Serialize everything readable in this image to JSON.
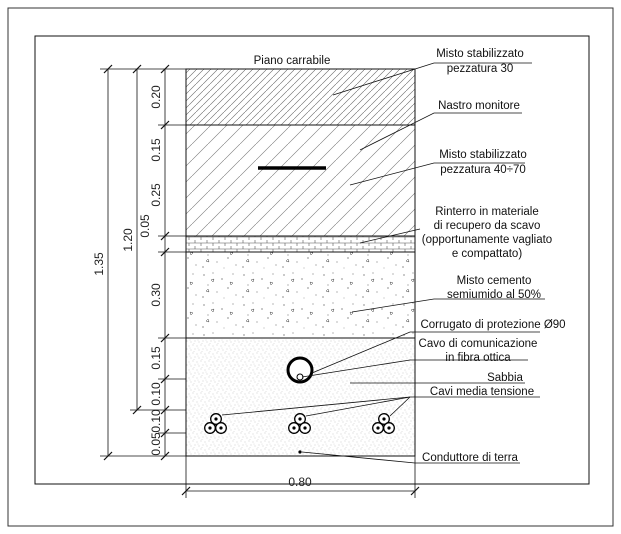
{
  "diagram": {
    "top_label": "Piano carrabile",
    "callouts": [
      {
        "id": "misto-30",
        "lines": [
          "Misto stabilizzato",
          "pezzatura 30"
        ]
      },
      {
        "id": "nastro",
        "lines": [
          "Nastro monitore"
        ]
      },
      {
        "id": "misto-40-70",
        "lines": [
          "Misto stabilizzato",
          "pezzatura 40÷70"
        ]
      },
      {
        "id": "rinterro",
        "lines": [
          "Rinterro in materiale",
          "di recupero da scavo",
          "(opportunamente vagliato",
          "e compattato)"
        ]
      },
      {
        "id": "cemento",
        "lines": [
          "Misto cemento",
          "semiumido al 50%"
        ]
      },
      {
        "id": "corrugato",
        "lines": [
          "Corrugato di protezione Ø90"
        ]
      },
      {
        "id": "fibra",
        "lines": [
          "Cavo di comunicazione",
          "in fibra ottica"
        ]
      },
      {
        "id": "sabbia",
        "lines": [
          "Sabbia"
        ]
      },
      {
        "id": "cavi-mt",
        "lines": [
          "Cavi media tensione"
        ]
      },
      {
        "id": "terra",
        "lines": [
          "Conduttore di terra"
        ]
      }
    ],
    "dimensions": {
      "total": "1.35",
      "partial": "1.20",
      "width": "0.80",
      "layers": [
        "0.20",
        "0.15",
        "0.25",
        "0.05",
        "0.30",
        "0.15",
        "0.10",
        "0.10",
        "0.05"
      ]
    },
    "colors": {
      "line": "#111111",
      "hatch": "#555555"
    }
  }
}
